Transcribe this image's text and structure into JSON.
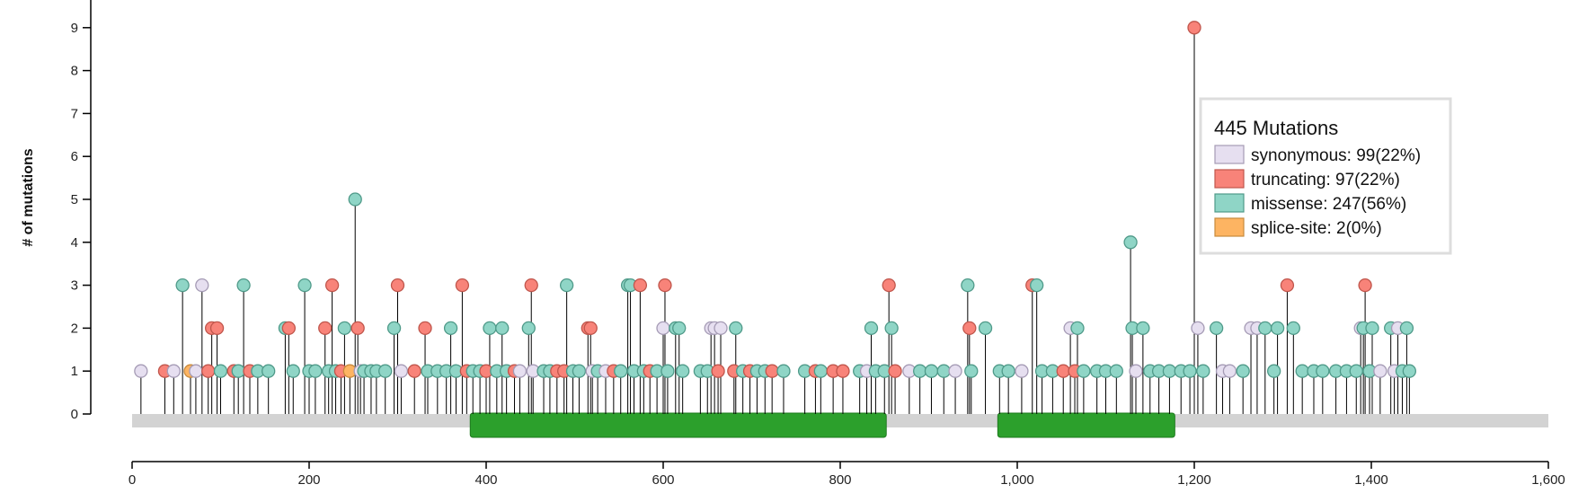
{
  "chart_data": {
    "type": "lollipop",
    "ylabel": "# of mutations",
    "xlim": [
      0,
      1600
    ],
    "ylim": [
      0,
      9
    ],
    "x_ticks": [
      "0",
      "200",
      "400",
      "600",
      "800",
      "1,000",
      "1,200",
      "1,400",
      "1,600"
    ],
    "x_tick_values": [
      0,
      200,
      400,
      600,
      800,
      1000,
      1200,
      1400,
      1600
    ],
    "y_ticks": [
      "0",
      "1",
      "2",
      "3",
      "4",
      "5",
      "6",
      "7",
      "8",
      "9"
    ],
    "protein_length": 1600,
    "domains": [
      {
        "start": 382,
        "end": 852,
        "color": "#2ca02c"
      },
      {
        "start": 978,
        "end": 1178,
        "color": "#2ca02c"
      }
    ],
    "legend": {
      "title": "445 Mutations",
      "items": [
        {
          "label": "synonymous: 99(22%)",
          "type": "synonymous",
          "color": "#e6dff0",
          "stroke": "#a59bb5"
        },
        {
          "label": "truncating: 97(22%)",
          "type": "truncating",
          "color": "#f88379",
          "stroke": "#c0564c"
        },
        {
          "label": "missense: 247(56%)",
          "type": "missense",
          "color": "#8fd5c6",
          "stroke": "#4f9a89"
        },
        {
          "label": "splice-site: 2(0%)",
          "type": "splice",
          "color": "#fdb462",
          "stroke": "#c88a3c"
        }
      ]
    },
    "lollipops": [
      {
        "x": 10,
        "y": 1,
        "type": "synonymous"
      },
      {
        "x": 37,
        "y": 1,
        "type": "truncating"
      },
      {
        "x": 47,
        "y": 1,
        "type": "synonymous"
      },
      {
        "x": 57,
        "y": 3,
        "type": "missense"
      },
      {
        "x": 66,
        "y": 1,
        "type": "splice"
      },
      {
        "x": 72,
        "y": 1,
        "type": "synonymous"
      },
      {
        "x": 79,
        "y": 3,
        "type": "synonymous"
      },
      {
        "x": 86,
        "y": 1,
        "type": "truncating"
      },
      {
        "x": 90,
        "y": 2,
        "type": "truncating"
      },
      {
        "x": 96,
        "y": 2,
        "type": "truncating"
      },
      {
        "x": 100,
        "y": 1,
        "type": "missense"
      },
      {
        "x": 115,
        "y": 1,
        "type": "truncating"
      },
      {
        "x": 120,
        "y": 1,
        "type": "missense"
      },
      {
        "x": 126,
        "y": 3,
        "type": "missense"
      },
      {
        "x": 133,
        "y": 1,
        "type": "truncating"
      },
      {
        "x": 142,
        "y": 1,
        "type": "missense"
      },
      {
        "x": 154,
        "y": 1,
        "type": "missense"
      },
      {
        "x": 173,
        "y": 2,
        "type": "missense"
      },
      {
        "x": 177,
        "y": 2,
        "type": "truncating"
      },
      {
        "x": 182,
        "y": 1,
        "type": "missense"
      },
      {
        "x": 195,
        "y": 3,
        "type": "missense"
      },
      {
        "x": 200,
        "y": 1,
        "type": "missense"
      },
      {
        "x": 207,
        "y": 1,
        "type": "missense"
      },
      {
        "x": 218,
        "y": 2,
        "type": "truncating"
      },
      {
        "x": 222,
        "y": 1,
        "type": "missense"
      },
      {
        "x": 226,
        "y": 3,
        "type": "truncating"
      },
      {
        "x": 230,
        "y": 1,
        "type": "missense"
      },
      {
        "x": 236,
        "y": 1,
        "type": "truncating"
      },
      {
        "x": 240,
        "y": 2,
        "type": "missense"
      },
      {
        "x": 246,
        "y": 1,
        "type": "splice"
      },
      {
        "x": 252,
        "y": 5,
        "type": "missense"
      },
      {
        "x": 255,
        "y": 2,
        "type": "truncating"
      },
      {
        "x": 258,
        "y": 1,
        "type": "synonymous"
      },
      {
        "x": 262,
        "y": 1,
        "type": "missense"
      },
      {
        "x": 270,
        "y": 1,
        "type": "missense"
      },
      {
        "x": 276,
        "y": 1,
        "type": "missense"
      },
      {
        "x": 286,
        "y": 1,
        "type": "missense"
      },
      {
        "x": 296,
        "y": 2,
        "type": "missense"
      },
      {
        "x": 300,
        "y": 3,
        "type": "truncating"
      },
      {
        "x": 304,
        "y": 1,
        "type": "synonymous"
      },
      {
        "x": 319,
        "y": 1,
        "type": "truncating"
      },
      {
        "x": 331,
        "y": 2,
        "type": "truncating"
      },
      {
        "x": 334,
        "y": 1,
        "type": "missense"
      },
      {
        "x": 345,
        "y": 1,
        "type": "missense"
      },
      {
        "x": 355,
        "y": 1,
        "type": "missense"
      },
      {
        "x": 360,
        "y": 2,
        "type": "missense"
      },
      {
        "x": 366,
        "y": 1,
        "type": "missense"
      },
      {
        "x": 373,
        "y": 3,
        "type": "truncating"
      },
      {
        "x": 378,
        "y": 1,
        "type": "truncating"
      },
      {
        "x": 385,
        "y": 1,
        "type": "missense"
      },
      {
        "x": 393,
        "y": 1,
        "type": "missense"
      },
      {
        "x": 400,
        "y": 1,
        "type": "truncating"
      },
      {
        "x": 404,
        "y": 2,
        "type": "missense"
      },
      {
        "x": 412,
        "y": 1,
        "type": "missense"
      },
      {
        "x": 418,
        "y": 2,
        "type": "missense"
      },
      {
        "x": 423,
        "y": 1,
        "type": "missense"
      },
      {
        "x": 432,
        "y": 1,
        "type": "truncating"
      },
      {
        "x": 438,
        "y": 1,
        "type": "synonymous"
      },
      {
        "x": 448,
        "y": 2,
        "type": "missense"
      },
      {
        "x": 451,
        "y": 3,
        "type": "truncating"
      },
      {
        "x": 453,
        "y": 1,
        "type": "synonymous"
      },
      {
        "x": 465,
        "y": 1,
        "type": "missense"
      },
      {
        "x": 472,
        "y": 1,
        "type": "missense"
      },
      {
        "x": 480,
        "y": 1,
        "type": "truncating"
      },
      {
        "x": 488,
        "y": 1,
        "type": "truncating"
      },
      {
        "x": 491,
        "y": 3,
        "type": "missense"
      },
      {
        "x": 498,
        "y": 1,
        "type": "missense"
      },
      {
        "x": 505,
        "y": 1,
        "type": "missense"
      },
      {
        "x": 515,
        "y": 2,
        "type": "truncating"
      },
      {
        "x": 518,
        "y": 2,
        "type": "truncating"
      },
      {
        "x": 520,
        "y": 1,
        "type": "synonymous"
      },
      {
        "x": 526,
        "y": 1,
        "type": "missense"
      },
      {
        "x": 535,
        "y": 1,
        "type": "synonymous"
      },
      {
        "x": 544,
        "y": 1,
        "type": "truncating"
      },
      {
        "x": 552,
        "y": 1,
        "type": "missense"
      },
      {
        "x": 560,
        "y": 3,
        "type": "missense"
      },
      {
        "x": 563,
        "y": 3,
        "type": "missense"
      },
      {
        "x": 567,
        "y": 1,
        "type": "missense"
      },
      {
        "x": 574,
        "y": 3,
        "type": "truncating"
      },
      {
        "x": 578,
        "y": 1,
        "type": "missense"
      },
      {
        "x": 585,
        "y": 1,
        "type": "truncating"
      },
      {
        "x": 593,
        "y": 1,
        "type": "missense"
      },
      {
        "x": 600,
        "y": 2,
        "type": "synonymous"
      },
      {
        "x": 602,
        "y": 3,
        "type": "truncating"
      },
      {
        "x": 605,
        "y": 1,
        "type": "missense"
      },
      {
        "x": 614,
        "y": 2,
        "type": "missense"
      },
      {
        "x": 618,
        "y": 2,
        "type": "missense"
      },
      {
        "x": 622,
        "y": 1,
        "type": "missense"
      },
      {
        "x": 642,
        "y": 1,
        "type": "missense"
      },
      {
        "x": 650,
        "y": 1,
        "type": "missense"
      },
      {
        "x": 654,
        "y": 2,
        "type": "synonymous"
      },
      {
        "x": 658,
        "y": 2,
        "type": "synonymous"
      },
      {
        "x": 662,
        "y": 1,
        "type": "truncating"
      },
      {
        "x": 665,
        "y": 2,
        "type": "synonymous"
      },
      {
        "x": 680,
        "y": 1,
        "type": "truncating"
      },
      {
        "x": 682,
        "y": 2,
        "type": "missense"
      },
      {
        "x": 690,
        "y": 1,
        "type": "missense"
      },
      {
        "x": 698,
        "y": 1,
        "type": "truncating"
      },
      {
        "x": 706,
        "y": 1,
        "type": "missense"
      },
      {
        "x": 715,
        "y": 1,
        "type": "missense"
      },
      {
        "x": 723,
        "y": 1,
        "type": "truncating"
      },
      {
        "x": 736,
        "y": 1,
        "type": "missense"
      },
      {
        "x": 760,
        "y": 1,
        "type": "missense"
      },
      {
        "x": 772,
        "y": 1,
        "type": "truncating"
      },
      {
        "x": 778,
        "y": 1,
        "type": "missense"
      },
      {
        "x": 792,
        "y": 1,
        "type": "truncating"
      },
      {
        "x": 803,
        "y": 1,
        "type": "truncating"
      },
      {
        "x": 822,
        "y": 1,
        "type": "missense"
      },
      {
        "x": 830,
        "y": 1,
        "type": "synonymous"
      },
      {
        "x": 835,
        "y": 2,
        "type": "missense"
      },
      {
        "x": 840,
        "y": 1,
        "type": "missense"
      },
      {
        "x": 850,
        "y": 1,
        "type": "missense"
      },
      {
        "x": 855,
        "y": 3,
        "type": "truncating"
      },
      {
        "x": 858,
        "y": 2,
        "type": "missense"
      },
      {
        "x": 862,
        "y": 1,
        "type": "truncating"
      },
      {
        "x": 878,
        "y": 1,
        "type": "synonymous"
      },
      {
        "x": 890,
        "y": 1,
        "type": "missense"
      },
      {
        "x": 903,
        "y": 1,
        "type": "missense"
      },
      {
        "x": 917,
        "y": 1,
        "type": "missense"
      },
      {
        "x": 930,
        "y": 1,
        "type": "synonymous"
      },
      {
        "x": 944,
        "y": 3,
        "type": "missense"
      },
      {
        "x": 946,
        "y": 2,
        "type": "truncating"
      },
      {
        "x": 948,
        "y": 1,
        "type": "missense"
      },
      {
        "x": 964,
        "y": 2,
        "type": "missense"
      },
      {
        "x": 980,
        "y": 1,
        "type": "missense"
      },
      {
        "x": 990,
        "y": 1,
        "type": "missense"
      },
      {
        "x": 1005,
        "y": 1,
        "type": "synonymous"
      },
      {
        "x": 1017,
        "y": 3,
        "type": "truncating"
      },
      {
        "x": 1022,
        "y": 3,
        "type": "missense"
      },
      {
        "x": 1028,
        "y": 1,
        "type": "missense"
      },
      {
        "x": 1040,
        "y": 1,
        "type": "missense"
      },
      {
        "x": 1052,
        "y": 1,
        "type": "truncating"
      },
      {
        "x": 1060,
        "y": 2,
        "type": "synonymous"
      },
      {
        "x": 1065,
        "y": 1,
        "type": "truncating"
      },
      {
        "x": 1068,
        "y": 2,
        "type": "missense"
      },
      {
        "x": 1075,
        "y": 1,
        "type": "missense"
      },
      {
        "x": 1090,
        "y": 1,
        "type": "missense"
      },
      {
        "x": 1100,
        "y": 1,
        "type": "missense"
      },
      {
        "x": 1112,
        "y": 1,
        "type": "missense"
      },
      {
        "x": 1128,
        "y": 4,
        "type": "missense"
      },
      {
        "x": 1130,
        "y": 2,
        "type": "missense"
      },
      {
        "x": 1134,
        "y": 1,
        "type": "synonymous"
      },
      {
        "x": 1142,
        "y": 2,
        "type": "missense"
      },
      {
        "x": 1150,
        "y": 1,
        "type": "missense"
      },
      {
        "x": 1160,
        "y": 1,
        "type": "missense"
      },
      {
        "x": 1172,
        "y": 1,
        "type": "missense"
      },
      {
        "x": 1185,
        "y": 1,
        "type": "missense"
      },
      {
        "x": 1195,
        "y": 1,
        "type": "missense"
      },
      {
        "x": 1200,
        "y": 9,
        "type": "truncating"
      },
      {
        "x": 1204,
        "y": 2,
        "type": "synonymous"
      },
      {
        "x": 1210,
        "y": 1,
        "type": "missense"
      },
      {
        "x": 1225,
        "y": 2,
        "type": "missense"
      },
      {
        "x": 1232,
        "y": 1,
        "type": "synonymous"
      },
      {
        "x": 1240,
        "y": 1,
        "type": "synonymous"
      },
      {
        "x": 1255,
        "y": 1,
        "type": "missense"
      },
      {
        "x": 1264,
        "y": 2,
        "type": "synonymous"
      },
      {
        "x": 1271,
        "y": 2,
        "type": "synonymous"
      },
      {
        "x": 1280,
        "y": 2,
        "type": "missense"
      },
      {
        "x": 1290,
        "y": 1,
        "type": "missense"
      },
      {
        "x": 1294,
        "y": 2,
        "type": "missense"
      },
      {
        "x": 1305,
        "y": 3,
        "type": "truncating"
      },
      {
        "x": 1312,
        "y": 2,
        "type": "missense"
      },
      {
        "x": 1322,
        "y": 1,
        "type": "missense"
      },
      {
        "x": 1335,
        "y": 1,
        "type": "missense"
      },
      {
        "x": 1345,
        "y": 1,
        "type": "missense"
      },
      {
        "x": 1360,
        "y": 1,
        "type": "missense"
      },
      {
        "x": 1372,
        "y": 1,
        "type": "missense"
      },
      {
        "x": 1383,
        "y": 1,
        "type": "missense"
      },
      {
        "x": 1388,
        "y": 2,
        "type": "synonymous"
      },
      {
        "x": 1391,
        "y": 2,
        "type": "missense"
      },
      {
        "x": 1393,
        "y": 3,
        "type": "truncating"
      },
      {
        "x": 1398,
        "y": 1,
        "type": "missense"
      },
      {
        "x": 1401,
        "y": 2,
        "type": "missense"
      },
      {
        "x": 1410,
        "y": 1,
        "type": "synonymous"
      },
      {
        "x": 1422,
        "y": 2,
        "type": "missense"
      },
      {
        "x": 1426,
        "y": 1,
        "type": "synonymous"
      },
      {
        "x": 1430,
        "y": 2,
        "type": "synonymous"
      },
      {
        "x": 1435,
        "y": 1,
        "type": "missense"
      },
      {
        "x": 1440,
        "y": 2,
        "type": "missense"
      },
      {
        "x": 1443,
        "y": 1,
        "type": "missense"
      }
    ]
  }
}
